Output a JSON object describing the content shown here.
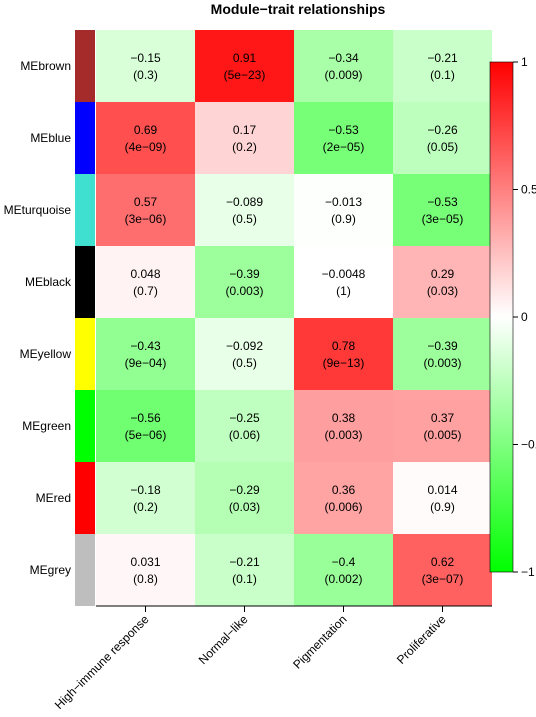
{
  "chart_data": {
    "type": "heatmap",
    "title": "Module−trait relationships",
    "rows": [
      "MEbrown",
      "MEblue",
      "MEturquoise",
      "MEblack",
      "MEyellow",
      "MEgreen",
      "MEred",
      "MEgrey"
    ],
    "row_colors": [
      "#a52a2a",
      "#0000ff",
      "#40e0d0",
      "#000000",
      "#ffff00",
      "#00ff00",
      "#ff0000",
      "#bebebe"
    ],
    "columns": [
      "High−immune response",
      "Normal−like",
      "Pigmentation",
      "Proliferative"
    ],
    "values": [
      [
        -0.15,
        0.91,
        -0.34,
        -0.21
      ],
      [
        0.69,
        0.17,
        -0.53,
        -0.26
      ],
      [
        0.57,
        -0.089,
        -0.013,
        -0.53
      ],
      [
        0.048,
        -0.39,
        -0.0048,
        0.29
      ],
      [
        -0.43,
        -0.092,
        0.78,
        -0.39
      ],
      [
        -0.56,
        -0.25,
        0.38,
        0.37
      ],
      [
        -0.18,
        -0.29,
        0.36,
        0.014
      ],
      [
        0.031,
        -0.21,
        -0.4,
        0.62
      ]
    ],
    "value_labels": [
      [
        "−0.15",
        "0.91",
        "−0.34",
        "−0.21"
      ],
      [
        "0.69",
        "0.17",
        "−0.53",
        "−0.26"
      ],
      [
        "0.57",
        "−0.089",
        "−0.013",
        "−0.53"
      ],
      [
        "0.048",
        "−0.39",
        "−0.0048",
        "0.29"
      ],
      [
        "−0.43",
        "−0.092",
        "0.78",
        "−0.39"
      ],
      [
        "−0.56",
        "−0.25",
        "0.38",
        "0.37"
      ],
      [
        "−0.18",
        "−0.29",
        "0.36",
        "0.014"
      ],
      [
        "0.031",
        "−0.21",
        "−0.4",
        "0.62"
      ]
    ],
    "pvalue_labels": [
      [
        "(0.3)",
        "(5e−23)",
        "(0.009)",
        "(0.1)"
      ],
      [
        "(4e−09)",
        "(0.2)",
        "(2e−05)",
        "(0.05)"
      ],
      [
        "(3e−06)",
        "(0.5)",
        "(0.9)",
        "(3e−05)"
      ],
      [
        "(0.7)",
        "(0.003)",
        "(1)",
        "(0.03)"
      ],
      [
        "(9e−04)",
        "(0.5)",
        "(9e−13)",
        "(0.003)"
      ],
      [
        "(5e−06)",
        "(0.06)",
        "(0.003)",
        "(0.005)"
      ],
      [
        "(0.2)",
        "(0.03)",
        "(0.006)",
        "(0.9)"
      ],
      [
        "(0.8)",
        "(0.1)",
        "(0.002)",
        "(3e−07)"
      ]
    ],
    "color_scale": {
      "min": -1,
      "mid": 0,
      "max": 1,
      "low_color": "#00ff00",
      "mid_color": "#ffffff",
      "high_color": "#ff0000"
    },
    "colorbar_ticks": [
      {
        "value": 1,
        "label": "1"
      },
      {
        "value": 0.5,
        "label": "0.5"
      },
      {
        "value": 0,
        "label": "0"
      },
      {
        "value": -0.5,
        "label": "−0.5"
      },
      {
        "value": -1,
        "label": "−1"
      }
    ],
    "legend_position": "right"
  }
}
